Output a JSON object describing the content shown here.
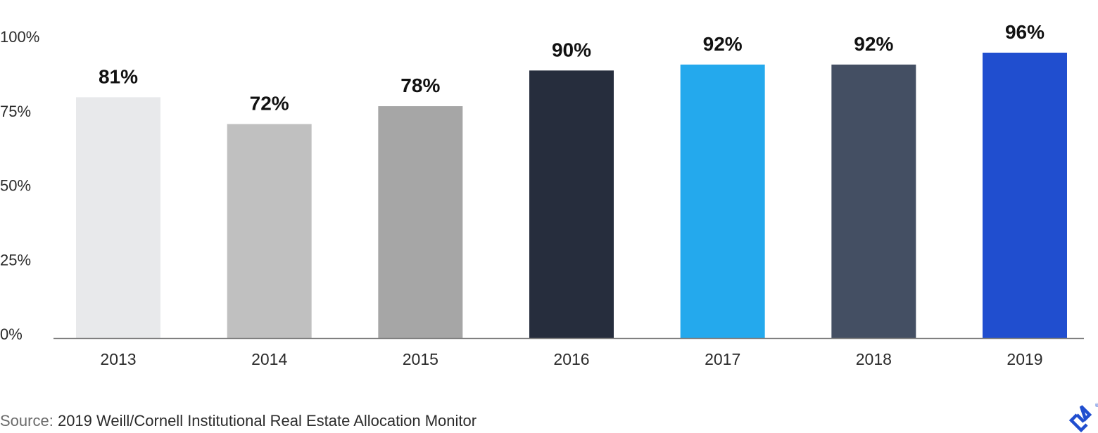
{
  "chart_data": {
    "type": "bar",
    "categories": [
      "2013",
      "2014",
      "2015",
      "2016",
      "2017",
      "2018",
      "2019"
    ],
    "values": [
      81,
      72,
      78,
      90,
      92,
      92,
      96
    ],
    "value_labels": [
      "81%",
      "72%",
      "78%",
      "90%",
      "92%",
      "92%",
      "96%"
    ],
    "bar_colors": [
      "#e8e9eb",
      "#c0c0c0",
      "#a6a6a6",
      "#262d3d",
      "#24a9ed",
      "#444f63",
      "#204ecf"
    ],
    "y_ticks": [
      0,
      25,
      50,
      75,
      100
    ],
    "y_tick_labels": [
      "0%",
      "25%",
      "50%",
      "75%",
      "100%"
    ],
    "ylim": [
      0,
      100
    ],
    "title": "",
    "xlabel": "",
    "ylabel": "",
    "grid": false,
    "legend": false
  },
  "source": {
    "prefix": "Source:",
    "text": "2019 Weill/Cornell Institutional Real Estate Allocation Monitor"
  },
  "logo": {
    "icon": "brand-logo-icon",
    "color": "#204ecf"
  }
}
